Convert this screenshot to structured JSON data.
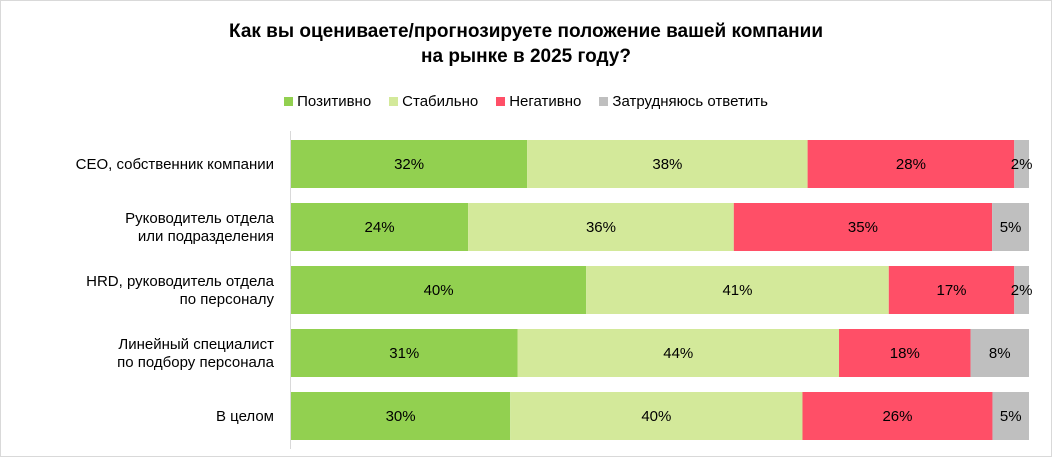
{
  "chart_data": {
    "type": "bar",
    "orientation": "horizontal-stacked-100",
    "title_lines": [
      "Как вы оцениваете/прогнозируете положение вашей компании",
      "на рынке в 2025 году?"
    ],
    "legend_position": "top",
    "categories": [
      [
        "CEO, собственник компании"
      ],
      [
        "Руководитель отдела",
        "или подразделения"
      ],
      [
        "HRD, руководитель отдела",
        "по персоналу"
      ],
      [
        "Линейный специалист",
        "по подбору персонала"
      ],
      [
        "В целом"
      ]
    ],
    "series": [
      {
        "name": "Позитивно",
        "color": "#92d050",
        "values": [
          32,
          24,
          40,
          31,
          30
        ]
      },
      {
        "name": "Стабильно",
        "color": "#d3e99a",
        "values": [
          38,
          36,
          41,
          44,
          40
        ]
      },
      {
        "name": "Негативно",
        "color": "#ff4f67",
        "values": [
          28,
          35,
          17,
          18,
          26
        ]
      },
      {
        "name": "Затрудняюсь ответить",
        "color": "#bfbfbf",
        "values": [
          2,
          5,
          2,
          8,
          5
        ]
      }
    ],
    "value_suffix": "%"
  }
}
